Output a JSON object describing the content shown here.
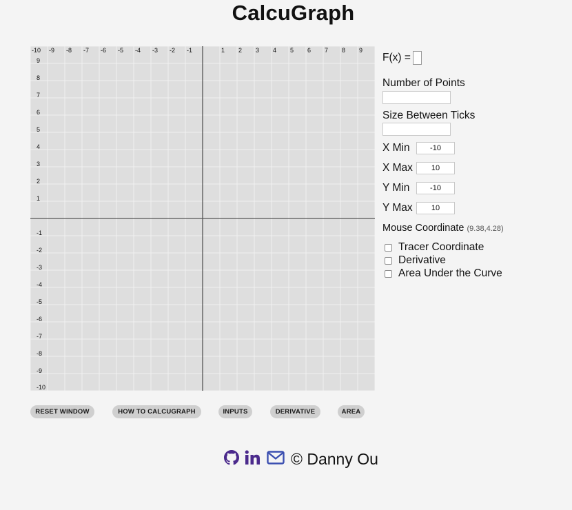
{
  "app": {
    "title": "CalcuGraph"
  },
  "graph": {
    "x_min": -10,
    "x_max": 10,
    "y_min": -10,
    "y_max": 10,
    "tick_step": 1,
    "x_tick_labels": [
      "-10",
      "-9",
      "-8",
      "-7",
      "-6",
      "-5",
      "-4",
      "-3",
      "-2",
      "-1",
      "1",
      "2",
      "3",
      "4",
      "5",
      "6",
      "7",
      "8",
      "9"
    ],
    "y_tick_labels": [
      "9",
      "8",
      "7",
      "6",
      "5",
      "4",
      "3",
      "2",
      "1",
      "-1",
      "-2",
      "-3",
      "-4",
      "-5",
      "-6",
      "-7",
      "-8",
      "-9",
      "-10"
    ]
  },
  "panel": {
    "fx_label": "F(x) =",
    "fx_value": "",
    "points_label": "Number of Points",
    "points_value": "",
    "ticks_label": "Size Between Ticks",
    "ticks_value": "",
    "xmin_label": "X Min",
    "xmin_value": "-10",
    "xmax_label": "X Max",
    "xmax_value": "10",
    "ymin_label": "Y Min",
    "ymin_value": "-10",
    "ymax_label": "Y Max",
    "ymax_value": "10",
    "mouse_label": "Mouse Coordinate",
    "mouse_value": "(9.38,4.28)",
    "tracer_label": "Tracer Coordinate",
    "derivative_label": "Derivative",
    "area_label": "Area Under the Curve"
  },
  "buttons": {
    "reset": "RESET WINDOW",
    "howto": "HOW TO CALCUGRAPH",
    "inputs": "INPUTS",
    "derivative": "DERIVATIVE",
    "area": "AREA"
  },
  "footer": {
    "copyright": "© Danny Ou",
    "github_icon": "github-icon",
    "linkedin_icon": "linkedin-icon",
    "email_icon": "envelope-icon",
    "icon_color": "#4b2a8c",
    "email_color": "#3b4fb0"
  },
  "colors": {
    "page_background": "#f4f4f4",
    "graph_background": "#dedede",
    "grid_line": "#f0f0f0",
    "axis_line": "#555555",
    "button_background": "#cfcfcf"
  }
}
